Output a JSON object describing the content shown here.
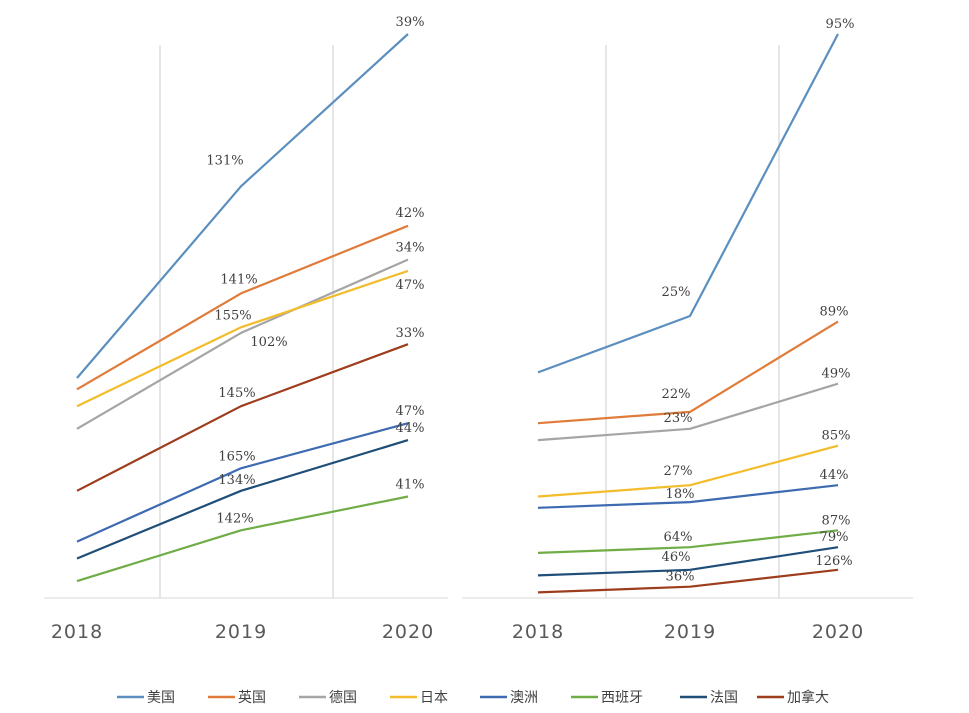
{
  "chart_data": [
    {
      "type": "line",
      "categories": [
        "2018",
        "2019",
        "2020"
      ],
      "ylim": [
        0,
        100
      ],
      "grid": true,
      "legend": "bottom",
      "series": [
        {
          "name": "美国",
          "color": "#5b8fbf",
          "values": [
            39,
            73,
            100
          ],
          "labels": [
            "",
            "131%",
            "39%"
          ]
        },
        {
          "name": "英国",
          "color": "#e07b39",
          "values": [
            37,
            54,
            66
          ],
          "labels": [
            "",
            "141%",
            "42%"
          ]
        },
        {
          "name": "德国",
          "color": "#a5a5a5",
          "values": [
            30,
            47,
            60
          ],
          "labels": [
            "",
            "102%",
            "34%"
          ]
        },
        {
          "name": "日本",
          "color": "#f3bc2b",
          "values": [
            34,
            48,
            58
          ],
          "labels": [
            "",
            "155%",
            "47%"
          ]
        },
        {
          "name": "澳洲",
          "color": "#3d6ab0",
          "values": [
            10,
            23,
            31
          ],
          "labels": [
            "",
            "165%",
            "47%"
          ]
        },
        {
          "name": "西班牙",
          "color": "#70ad47",
          "values": [
            3,
            12,
            18
          ],
          "labels": [
            "",
            "142%",
            "41%"
          ]
        },
        {
          "name": "法国",
          "color": "#1f4e79",
          "values": [
            7,
            19,
            28
          ],
          "labels": [
            "",
            "134%",
            "44%"
          ]
        },
        {
          "name": "加拿大",
          "color": "#9e3d1d",
          "values": [
            19,
            34,
            45
          ],
          "labels": [
            "",
            "145%",
            "33%"
          ]
        }
      ]
    },
    {
      "type": "line",
      "categories": [
        "2018",
        "2019",
        "2020"
      ],
      "ylim": [
        0,
        100
      ],
      "grid": true,
      "legend": "bottom",
      "series": [
        {
          "name": "美国",
          "color": "#5b8fbf",
          "values": [
            40,
            50,
            100
          ],
          "labels": [
            "",
            "25%",
            "95%"
          ]
        },
        {
          "name": "英国",
          "color": "#e07b39",
          "values": [
            31,
            33,
            49
          ],
          "labels": [
            "",
            "22%",
            "89%"
          ]
        },
        {
          "name": "德国",
          "color": "#a5a5a5",
          "values": [
            28,
            30,
            38
          ],
          "labels": [
            "",
            "23%",
            "49%"
          ]
        },
        {
          "name": "日本",
          "color": "#f3bc2b",
          "values": [
            18,
            20,
            27
          ],
          "labels": [
            "",
            "27%",
            "85%"
          ]
        },
        {
          "name": "澳洲",
          "color": "#3d6ab0",
          "values": [
            16,
            17,
            20
          ],
          "labels": [
            "",
            "18%",
            "44%"
          ]
        },
        {
          "name": "西班牙",
          "color": "#70ad47",
          "values": [
            8,
            9,
            12
          ],
          "labels": [
            "",
            "64%",
            "87%"
          ]
        },
        {
          "name": "法国",
          "color": "#1f4e79",
          "values": [
            4,
            5,
            9
          ],
          "labels": [
            "",
            "46%",
            "79%"
          ]
        },
        {
          "name": "加拿大",
          "color": "#9e3d1d",
          "values": [
            1,
            2,
            5
          ],
          "labels": [
            "",
            "36%",
            "126%"
          ]
        }
      ]
    }
  ],
  "legend": {
    "items": [
      {
        "name": "美国",
        "color": "#5b8fbf"
      },
      {
        "name": "英国",
        "color": "#e07b39"
      },
      {
        "name": "德国",
        "color": "#a5a5a5"
      },
      {
        "name": "日本",
        "color": "#f3bc2b"
      },
      {
        "name": "澳洲",
        "color": "#3d6ab0"
      },
      {
        "name": "西班牙",
        "color": "#70ad47"
      },
      {
        "name": "法国",
        "color": "#1f4e79"
      },
      {
        "name": "加拿大",
        "color": "#9e3d1d"
      }
    ]
  }
}
